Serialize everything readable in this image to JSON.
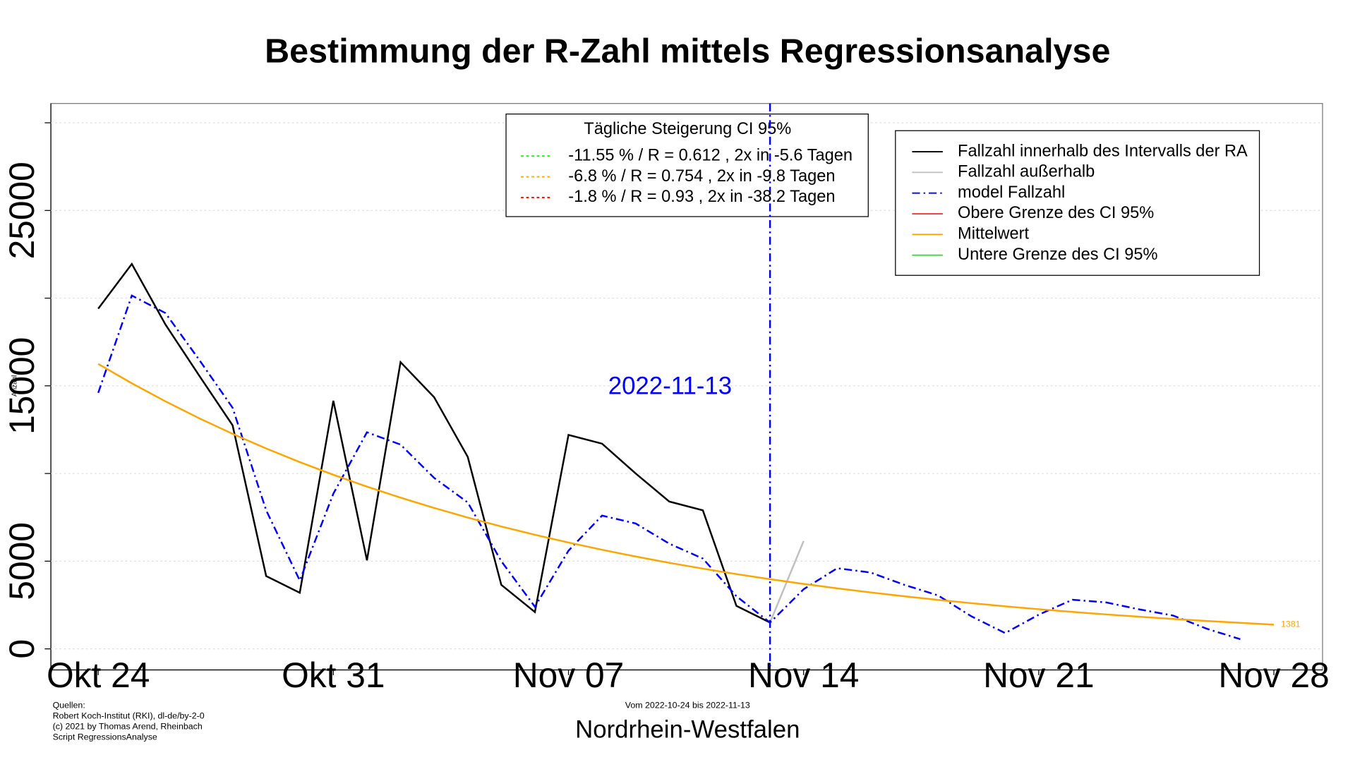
{
  "chart_data": {
    "type": "line",
    "title": "Bestimmung der R-Zahl mittels Regressionsanalyse",
    "xlabel": "Nordrhein-Westfalen",
    "ylabel": "Anzahl",
    "period": "Vom 2022-10-24 bis 2022-11-13",
    "sources": [
      "Quellen:",
      "Robert Koch-Institut (RKI), dl-de/by-2-0",
      "(c) 2021 by Thomas Arend, Rheinbach",
      "Script RegressionsAnalyse"
    ],
    "categories": [
      "Okt 24",
      null,
      null,
      null,
      null,
      null,
      null,
      "Okt 31",
      null,
      null,
      null,
      null,
      null,
      null,
      "Nov 07",
      null,
      null,
      null,
      null,
      null,
      null,
      "Nov 14",
      null,
      null,
      null,
      null,
      null,
      null,
      "Nov 21",
      null,
      null,
      null,
      null,
      null,
      null,
      "Nov 28"
    ],
    "ylim": [
      -1200,
      31100
    ],
    "yticks": [
      0,
      5000,
      {
        "value": 10000,
        "label": null
      },
      15000,
      {
        "value": 20000,
        "label": null
      },
      25000,
      {
        "value": 30000,
        "label": null
      }
    ],
    "grid": true,
    "vline": {
      "label": "2022-11-13",
      "color": "#0000ff"
    },
    "ci_legend": {
      "title": "Tägliche Steigerung CI  95%",
      "entries": [
        {
          "label": "-11.55 % / R = 0.612 , 2x in -5.6 Tagen",
          "color": "#00ff00"
        },
        {
          "label": "-6.8 % / R = 0.754 , 2x in -9.8 Tagen",
          "color": "#ffa500"
        },
        {
          "label": "-1.8 % / R = 0.93 , 2x in -38.2 Tagen",
          "color": "#ff0000"
        }
      ]
    },
    "series": [
      {
        "name": "Fallzahl innerhalb des Intervalls der RA",
        "color": "#000000",
        "linestyle": "solid",
        "values": [
          19400,
          21950,
          18500,
          15600,
          12750,
          4150,
          3200,
          14150,
          5050,
          16350,
          14350,
          10950,
          3650,
          2100,
          12200,
          11700,
          10000,
          8400,
          7900,
          2450,
          1500,
          null,
          null,
          null,
          null,
          null,
          null,
          null,
          null,
          null,
          null,
          null,
          null,
          null,
          null,
          null
        ]
      },
      {
        "name": "Fallzahl außerhalb",
        "color": "#c0c0c0",
        "linestyle": "solid",
        "values": [
          null,
          null,
          null,
          null,
          null,
          null,
          null,
          null,
          null,
          null,
          null,
          null,
          null,
          null,
          null,
          null,
          null,
          null,
          null,
          null,
          1500,
          6150,
          null,
          null,
          null,
          null,
          null,
          null,
          null,
          null,
          null,
          null,
          null,
          null,
          null,
          null
        ]
      },
      {
        "name": "model Fallzahl",
        "color": "#0000ff",
        "linestyle": "dashdot",
        "values": [
          14600,
          20150,
          19150,
          16500,
          13750,
          7900,
          3900,
          8850,
          12350,
          11650,
          9750,
          8350,
          5000,
          2400,
          5600,
          7600,
          7150,
          6000,
          5150,
          3000,
          1500,
          3400,
          4600,
          4350,
          3650,
          3050,
          1850,
          900,
          1950,
          2800,
          2650,
          2250,
          1900,
          1150,
          550,
          null
        ]
      },
      {
        "name": "Obere Grenze des CI 95%",
        "color": "#ff3030",
        "linestyle": "solid",
        "values": [
          null,
          null,
          null,
          null,
          null,
          null,
          null,
          null,
          null,
          null,
          null,
          null,
          null,
          null,
          null,
          null,
          null,
          null,
          null,
          null,
          null,
          null,
          null,
          null,
          null,
          null,
          null,
          null,
          null,
          null,
          null,
          null,
          null,
          null,
          null,
          null
        ]
      },
      {
        "name": "Mittelwert",
        "color": "#ffa500",
        "linestyle": "solid",
        "values": [
          16250,
          15145,
          14115,
          13155,
          12261,
          11427,
          10650,
          9926,
          9251,
          8622,
          8036,
          7489,
          6980,
          6505,
          6063,
          5651,
          5266,
          4908,
          4575,
          4264,
          3974,
          3704,
          3452,
          3217,
          2998,
          2794,
          2604,
          2427,
          2262,
          2108,
          1965,
          1831,
          1707,
          1591,
          1483,
          1381
        ],
        "value_labels": [
          null,
          null,
          null,
          null,
          null,
          null,
          null,
          null,
          null,
          null,
          null,
          null,
          null,
          null,
          null,
          null,
          null,
          null,
          null,
          null,
          null,
          null,
          null,
          null,
          null,
          null,
          null,
          null,
          null,
          null,
          null,
          null,
          null,
          null,
          null,
          "1381"
        ]
      },
      {
        "name": "Untere Grenze des CI 95%",
        "color": "#30e030",
        "linestyle": "solid",
        "values": [
          null,
          null,
          null,
          null,
          null,
          null,
          null,
          null,
          null,
          null,
          null,
          null,
          null,
          null,
          null,
          null,
          null,
          null,
          null,
          null,
          null,
          null,
          null,
          null,
          null,
          null,
          null,
          null,
          null,
          null,
          null,
          null,
          null,
          null,
          null,
          null
        ]
      }
    ]
  }
}
